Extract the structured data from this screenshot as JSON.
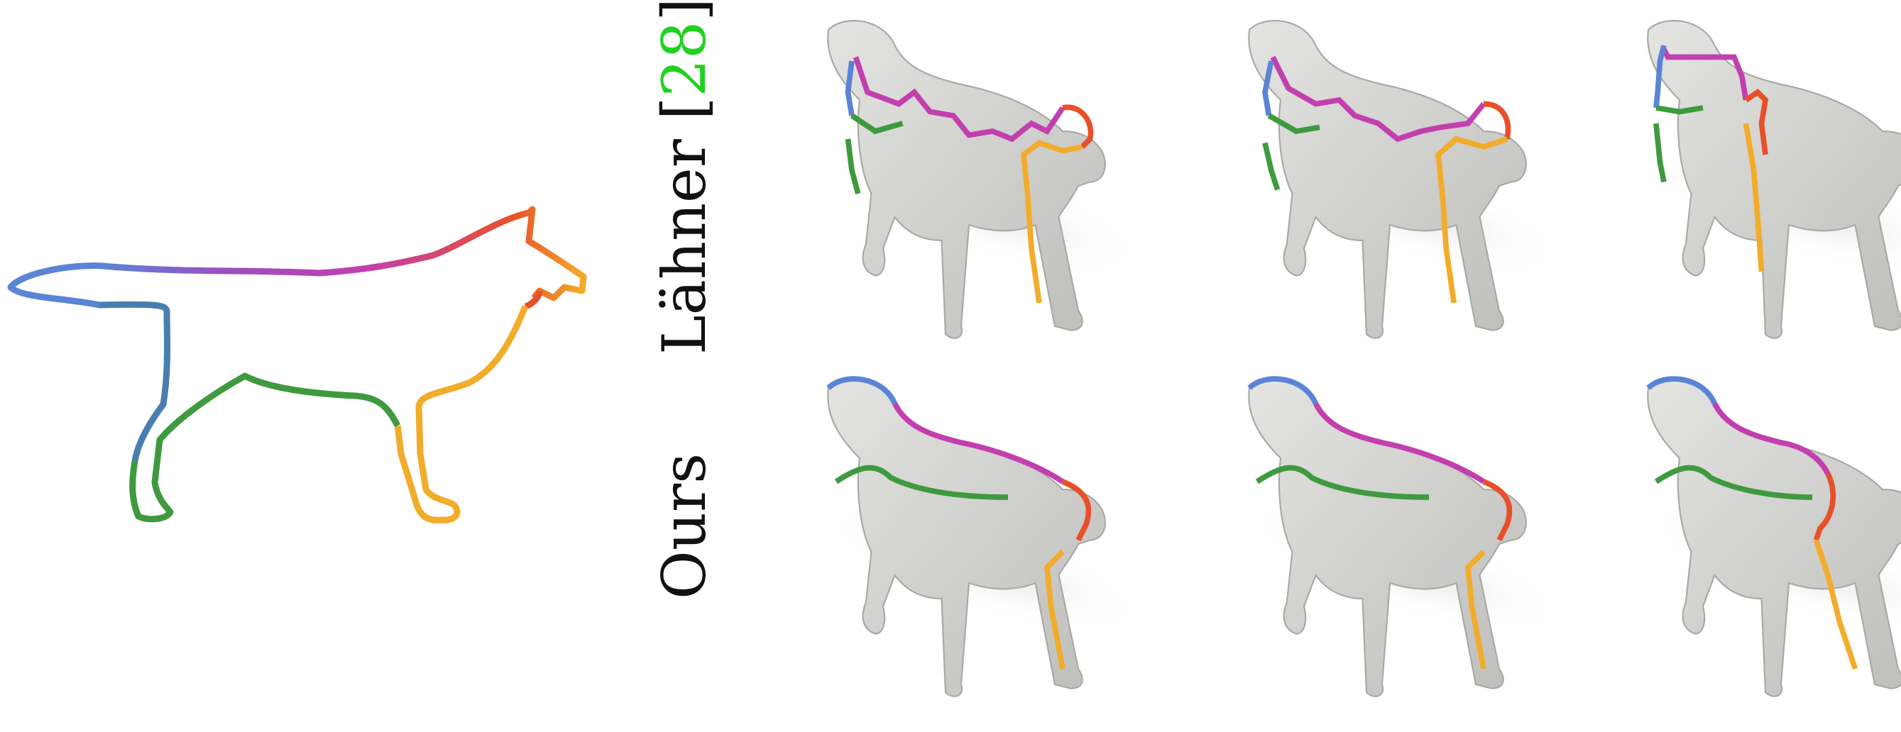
{
  "figure": {
    "row_labels": [
      {
        "name": "Lähner",
        "citation_open": "[",
        "citation_number": "28",
        "citation_close": "]"
      },
      {
        "name": "Ours"
      }
    ],
    "colors": {
      "tail": "#5b84d6",
      "back": "#c23fae",
      "head": "#e8502a",
      "front_leg": "#f2ac2a",
      "belly_hind": "#3f9a3f",
      "mesh": "#cfcfcc",
      "citation": "#1fd21f"
    }
  }
}
